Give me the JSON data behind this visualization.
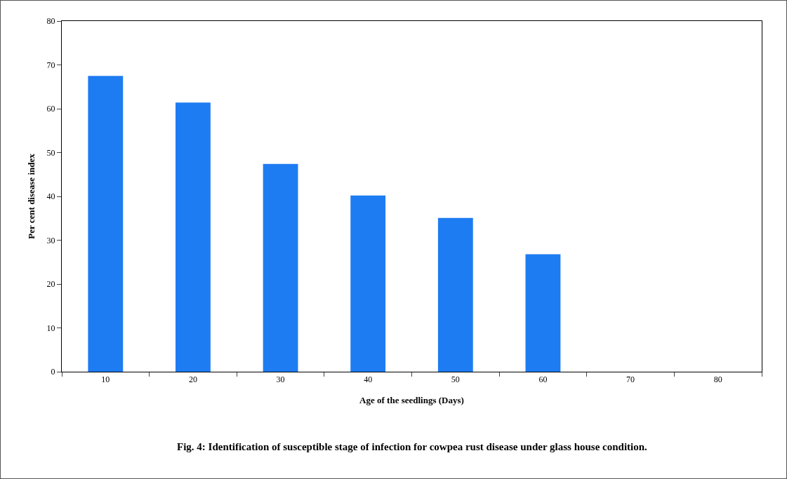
{
  "chart_data": {
    "type": "bar",
    "xlabel": "Age of the seedlings (Days)",
    "ylabel": "Per cent disease index",
    "categories": [
      "10",
      "20",
      "30",
      "40",
      "50",
      "60",
      "70",
      "80"
    ],
    "values": [
      67.5,
      61.4,
      47.4,
      40.2,
      35.1,
      26.8,
      0,
      0
    ],
    "color": "#1e7cf2",
    "ylim": [
      0,
      80
    ],
    "yticks": [
      0,
      10,
      20,
      30,
      40,
      50,
      60,
      70,
      80
    ],
    "grid": false,
    "legend": false,
    "annotations": [
      "Fig. 4: Identification of susceptible stage of infection for cowpea rust disease under glass house condition."
    ]
  }
}
